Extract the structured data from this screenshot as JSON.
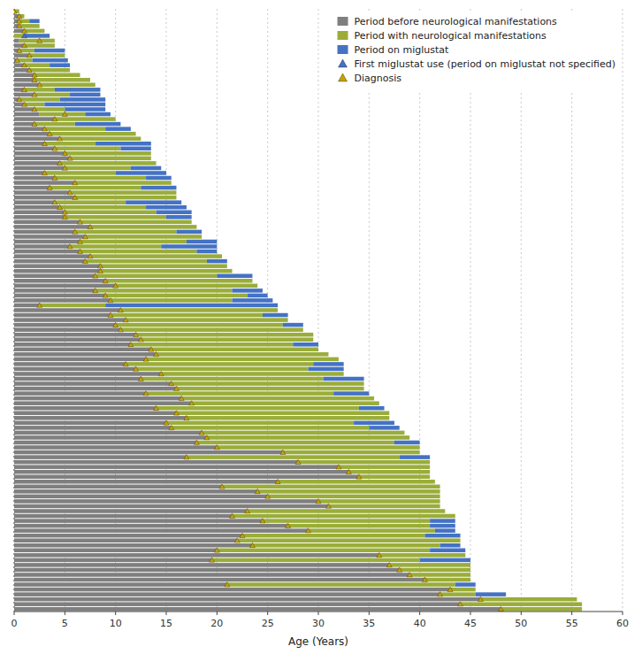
{
  "chart_data": {
    "type": "bar",
    "orientation": "horizontal",
    "stacked": true,
    "xlabel": "Age (Years)",
    "xlim": [
      0,
      60
    ],
    "xticks": [
      0,
      5,
      10,
      15,
      20,
      25,
      30,
      35,
      40,
      45,
      50,
      55,
      60
    ],
    "grid": true,
    "legend": "upper right",
    "tick_labels": "x",
    "categories": [
      null,
      null,
      null,
      null,
      null,
      null,
      null,
      null,
      null,
      null,
      null,
      null,
      null,
      null,
      null,
      null,
      null,
      null,
      null,
      null,
      null,
      null,
      null,
      null,
      null,
      null,
      null,
      null,
      null,
      null,
      null,
      null,
      null,
      null,
      null,
      null,
      null,
      null,
      null,
      null,
      null,
      null,
      null,
      null,
      null,
      null,
      null,
      null,
      null,
      null,
      null,
      null,
      null,
      null,
      null,
      null,
      null,
      null,
      null,
      null,
      null,
      null,
      null,
      null,
      null,
      null,
      null,
      null,
      null,
      null,
      null,
      null,
      null,
      null,
      null,
      null,
      null,
      null,
      null,
      null,
      null,
      null,
      null,
      null,
      null,
      null,
      null,
      null,
      null,
      null,
      null,
      null,
      null,
      null,
      null,
      null,
      null,
      null,
      null,
      null,
      null,
      null,
      null,
      null,
      null,
      null,
      null,
      null,
      null,
      null,
      null,
      null,
      null,
      null,
      null,
      null,
      null,
      null,
      null,
      null,
      null,
      null,
      null
    ],
    "series": [
      {
        "name": "Period before neurological manifestations",
        "color": "#7f7f7f",
        "values": [
          0,
          0.5,
          0.5,
          0.5,
          1,
          0,
          0.5,
          1,
          0.5,
          1.5,
          0.3,
          1,
          1.5,
          2,
          2,
          2.5,
          1,
          2,
          0.5,
          1,
          2,
          2.5,
          4,
          2,
          3,
          3.5,
          4.5,
          3,
          4,
          5,
          5.5,
          4.5,
          5,
          3,
          4,
          6,
          3.5,
          5.5,
          6,
          4,
          4.5,
          5,
          5,
          6.5,
          7.5,
          6,
          7,
          6.5,
          5.5,
          6.5,
          7.5,
          7,
          8.5,
          8.5,
          8,
          9,
          10,
          8,
          9,
          9.5,
          2.5,
          10.5,
          9.5,
          11,
          10,
          10.5,
          12,
          12.5,
          11.5,
          13.5,
          14,
          13,
          11,
          12,
          14.5,
          12.5,
          15.5,
          16,
          13,
          16.5,
          17.5,
          14,
          16,
          17,
          15,
          15.5,
          18.5,
          19,
          18,
          20,
          26.5,
          17,
          28,
          32,
          33,
          34,
          26,
          20.5,
          24,
          25,
          30,
          31,
          23,
          21.5,
          24.5,
          27,
          29,
          22.5,
          22,
          23.5,
          20,
          36,
          19.5,
          37,
          38,
          39,
          40.5,
          21,
          43,
          42,
          46,
          44,
          48
        ]
      },
      {
        "name": "Period with neurological manifestations",
        "color": "#9aad3a",
        "values": [
          0.5,
          0.5,
          1,
          2,
          2,
          1,
          3.5,
          3,
          1.5,
          3.5,
          1.5,
          2.5,
          4,
          4.5,
          5.5,
          5.5,
          3,
          3.5,
          4,
          2,
          3,
          4.5,
          6,
          4,
          6,
          8.5,
          8,
          5,
          6.5,
          8.5,
          8,
          9.5,
          6.5,
          7,
          9,
          9.5,
          9,
          10.5,
          10,
          7,
          8.5,
          9,
          10,
          11,
          10.5,
          10,
          11.5,
          10.5,
          9,
          11.5,
          13,
          12,
          12.5,
          13,
          12,
          14.5,
          14,
          13.5,
          14,
          12,
          6.5,
          15.5,
          15,
          16,
          16.5,
          18,
          17.5,
          17,
          16,
          16.5,
          17,
          19,
          18.5,
          17,
          18,
          18,
          19,
          18.5,
          18.5,
          19,
          18.5,
          20,
          21,
          20,
          18.5,
          19.5,
          20,
          20,
          19.5,
          20,
          13.5,
          21,
          13,
          9,
          8,
          7,
          15.5,
          21.5,
          18,
          17,
          12,
          11,
          19.5,
          22,
          16.5,
          14,
          12.5,
          18,
          22,
          18.5,
          21,
          8.5,
          20.5,
          8,
          7,
          6,
          4.5,
          22.5,
          2.5,
          3.5,
          9.5,
          12,
          8
        ]
      },
      {
        "name": "Period on miglustat",
        "color": "#4472c4",
        "values": [
          0,
          0,
          1,
          0,
          0,
          2.5,
          0,
          0,
          3,
          0,
          3.5,
          2,
          0,
          0,
          0,
          0,
          4.5,
          3,
          4.5,
          6,
          4,
          2.5,
          0,
          4.5,
          2.5,
          0,
          0,
          5.5,
          3,
          0,
          0,
          0,
          3,
          5,
          2.5,
          0,
          3.5,
          0,
          0,
          5.5,
          4,
          3.5,
          2.5,
          0,
          0,
          2.5,
          0,
          3,
          5.5,
          2,
          0,
          2,
          0,
          0,
          3.5,
          0,
          0,
          3,
          2,
          4,
          17,
          0,
          2.5,
          0,
          2,
          0,
          0,
          0,
          2.5,
          0,
          0,
          0,
          3,
          3.5,
          0,
          4,
          0,
          0,
          3.5,
          0,
          0,
          2.5,
          0,
          0,
          4,
          3,
          0,
          0,
          2.5,
          0,
          0,
          3,
          0,
          0,
          0,
          0,
          0,
          0,
          0,
          0,
          0,
          0,
          0,
          0,
          2.5,
          2.5,
          2,
          3.5,
          0,
          2,
          3.5,
          0,
          5,
          0,
          0,
          0,
          0,
          2,
          0,
          3,
          0,
          0,
          0
        ]
      },
      {
        "name": "First miglustat use (period on miglustat not specified)",
        "type": "scatter",
        "marker": "triangle",
        "color": "#4472c4",
        "values": [
          null,
          null,
          null,
          null,
          null,
          1,
          null,
          null,
          null,
          null,
          null,
          null,
          null,
          null,
          null,
          null,
          null,
          null,
          null,
          null,
          null,
          null,
          null,
          null,
          null,
          null,
          null,
          null,
          null,
          null,
          null,
          null,
          null,
          null,
          null,
          null,
          null,
          null,
          null,
          null,
          null,
          null,
          null,
          null,
          null,
          null,
          null,
          null,
          null,
          null,
          null,
          null,
          null,
          null,
          null,
          null,
          null,
          null,
          null,
          null,
          null,
          null,
          null,
          null,
          null,
          null,
          null,
          null,
          null,
          null,
          null,
          null,
          null,
          null,
          null,
          null,
          null,
          null,
          null,
          null,
          null,
          null,
          null,
          null,
          null,
          null,
          null,
          null,
          null,
          null,
          null,
          null,
          null,
          null,
          null,
          null,
          null,
          null,
          null,
          null,
          null,
          null,
          null,
          null,
          null,
          null,
          null,
          null,
          null,
          null,
          null,
          null,
          null,
          null,
          null,
          null,
          null,
          null,
          null,
          null,
          null,
          null,
          null
        ]
      },
      {
        "name": "Diagnosis",
        "type": "scatter",
        "marker": "triangle",
        "color": "#c8a000",
        "values": [
          0,
          0.5,
          0.5,
          0.5,
          1,
          null,
          2.5,
          1,
          0.5,
          1.5,
          0.3,
          1,
          1.5,
          2,
          2,
          2.5,
          1,
          2,
          0.5,
          1,
          2,
          5,
          4,
          2,
          3,
          3.5,
          4.5,
          3,
          4,
          5,
          5.5,
          4.5,
          5,
          3,
          4,
          6,
          3.5,
          5.5,
          6,
          4,
          4.5,
          5,
          5,
          6.5,
          7.5,
          6,
          7,
          6.5,
          5.5,
          6.5,
          7.5,
          7,
          8.5,
          8.5,
          8,
          9,
          10,
          8,
          9,
          9.5,
          2.5,
          10.5,
          9.5,
          11,
          10,
          10.5,
          12,
          12.5,
          11.5,
          13.5,
          14,
          13,
          11,
          12,
          14.5,
          12.5,
          15.5,
          16,
          13,
          16.5,
          17.5,
          14,
          16,
          17,
          15,
          15.5,
          18.5,
          19,
          18,
          20,
          26.5,
          17,
          28,
          32,
          33,
          34,
          26,
          20.5,
          24,
          25,
          30,
          31,
          23,
          21.5,
          24.5,
          27,
          29,
          22.5,
          22,
          23.5,
          20,
          36,
          19.5,
          37,
          38,
          39,
          40.5,
          21,
          43,
          42,
          46,
          44,
          48
        ]
      }
    ]
  }
}
